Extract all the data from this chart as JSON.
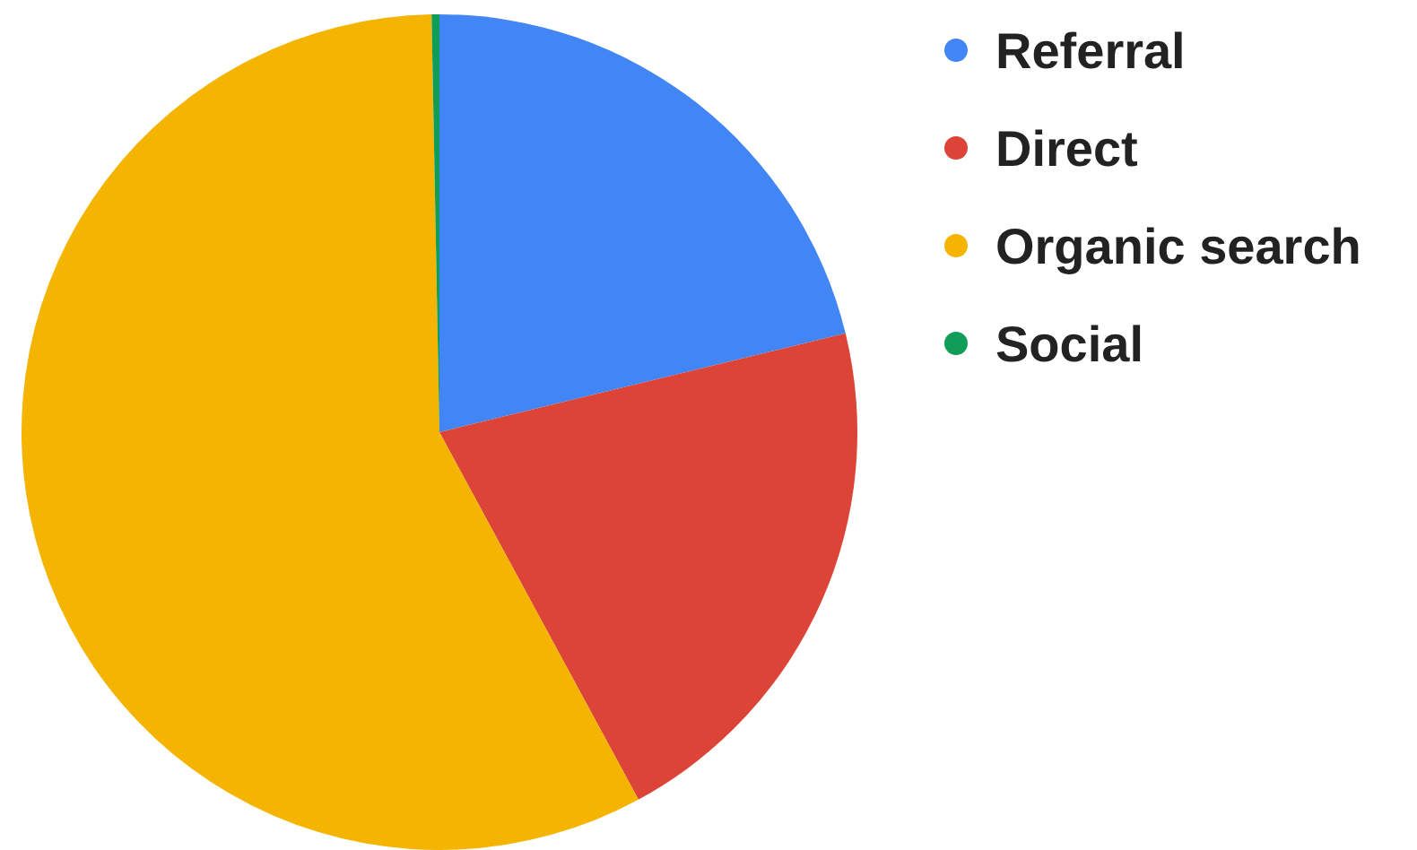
{
  "chart_data": {
    "type": "pie",
    "categories": [
      "Referral",
      "Direct",
      "Organic search",
      "Social"
    ],
    "values": [
      21.2,
      20.9,
      57.6,
      0.3
    ],
    "colors": [
      "#4285f4",
      "#db4437",
      "#f4b400",
      "#0f9d58"
    ],
    "legend": "right"
  }
}
